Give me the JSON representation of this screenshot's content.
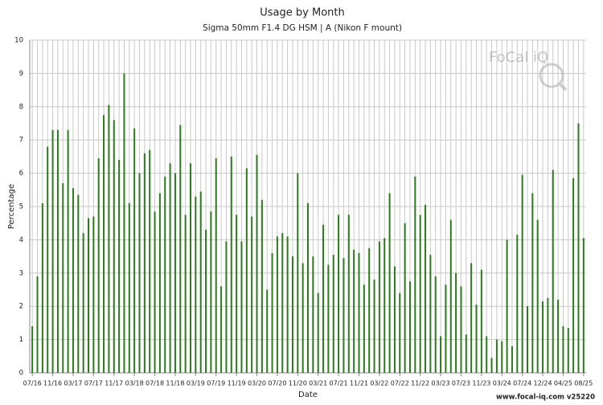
{
  "chart_data": {
    "type": "bar",
    "title": "Usage by Month",
    "subtitle": "Sigma 50mm F1.4 DG HSM | A (Nikon F mount)",
    "x_label": "Date",
    "y_label": "Percentage",
    "watermark": "FoCal iQ",
    "footer": "www.focal-iq.com v25220",
    "color": "#2b7a1c",
    "grid": true,
    "ylim": [
      0,
      10
    ],
    "yticks": [
      0,
      1,
      2,
      3,
      4,
      5,
      6,
      7,
      8,
      9,
      10
    ],
    "categories": [
      "07/16",
      null,
      null,
      null,
      "11/16",
      null,
      null,
      null,
      "03/17",
      null,
      null,
      null,
      "07/17",
      null,
      null,
      null,
      "11/17",
      null,
      null,
      null,
      "03/18",
      null,
      null,
      null,
      "07/18",
      null,
      null,
      null,
      "11/18",
      null,
      null,
      null,
      "03/19",
      null,
      null,
      null,
      "07/19",
      null,
      null,
      null,
      "11/19",
      null,
      null,
      null,
      "03/20",
      null,
      null,
      null,
      "07/20",
      null,
      null,
      null,
      "11/20",
      null,
      null,
      null,
      "03/21",
      null,
      null,
      null,
      "07/21",
      null,
      null,
      null,
      "11/21",
      null,
      null,
      null,
      "03/22",
      null,
      null,
      null,
      "07/22",
      null,
      null,
      null,
      "11/22",
      null,
      null,
      null,
      "03/23",
      null,
      null,
      null,
      "07/23",
      null,
      null,
      null,
      "11/23",
      null,
      null,
      null,
      "03/24",
      null,
      null,
      null,
      "07/24",
      null,
      null,
      null,
      "12/24",
      null,
      null,
      null,
      "04/25",
      null,
      null,
      null,
      "08/25"
    ],
    "values": [
      1.4,
      2.9,
      5.1,
      6.8,
      7.3,
      7.3,
      5.7,
      7.3,
      5.55,
      5.35,
      4.2,
      4.65,
      4.7,
      6.45,
      7.75,
      8.05,
      7.6,
      6.4,
      9.0,
      5.1,
      7.35,
      6.0,
      6.6,
      6.7,
      4.85,
      5.4,
      5.9,
      6.3,
      6.0,
      7.45,
      4.75,
      6.3,
      5.3,
      5.45,
      4.3,
      4.85,
      6.45,
      2.6,
      3.95,
      6.5,
      4.75,
      3.95,
      6.15,
      4.7,
      6.55,
      5.2,
      2.5,
      3.6,
      4.1,
      4.2,
      4.1,
      3.5,
      6.0,
      3.3,
      5.1,
      3.5,
      2.4,
      4.45,
      3.25,
      3.55,
      4.75,
      3.45,
      4.75,
      3.7,
      3.6,
      2.65,
      3.75,
      2.8,
      3.95,
      4.05,
      5.4,
      3.2,
      2.4,
      4.5,
      2.75,
      5.9,
      4.75,
      5.05,
      3.55,
      2.9,
      1.1,
      2.65,
      4.6,
      3.0,
      2.6,
      1.15,
      3.3,
      2.05,
      3.1,
      1.1,
      0.45,
      1.0,
      0.95,
      4.0,
      0.8,
      4.15,
      5.95,
      2.0,
      5.4,
      4.6,
      2.15,
      2.25,
      6.1,
      2.2,
      1.4,
      1.35,
      5.85,
      7.5,
      4.05
    ]
  }
}
